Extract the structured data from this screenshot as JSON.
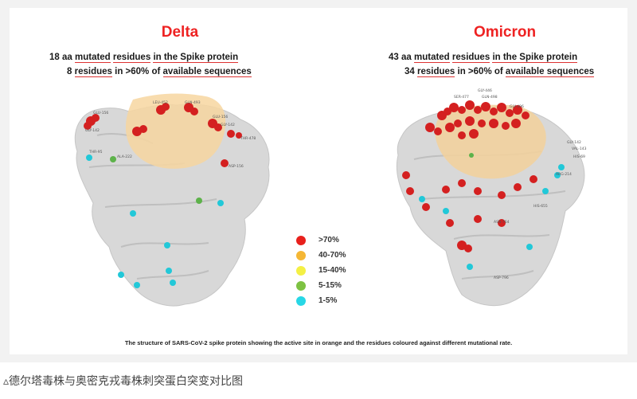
{
  "panels": {
    "delta": {
      "title": "Delta",
      "line1_count": "18 aa",
      "line1_mid": "mutated",
      "line1_mid2": "residues",
      "line1_rest": "in the Spike protein",
      "line2_count": "8",
      "line2_mid": "residues",
      "line2_rest": "in >60% of",
      "line2_tail": "available sequences"
    },
    "omicron": {
      "title": "Omicron",
      "line1_count": "43 aa",
      "line1_mid": "mutated",
      "line1_mid2": "residues",
      "line1_rest": "in the Spike protein",
      "line2_count": "34",
      "line2_mid": "residues",
      "line2_rest": "in >60% of",
      "line2_tail": "available sequences"
    }
  },
  "legend": [
    {
      "label": ">70%",
      "color": "#e8201c"
    },
    {
      "label": "40-70%",
      "color": "#f5b735"
    },
    {
      "label": "15-40%",
      "color": "#f4f044"
    },
    {
      "label": "5-15%",
      "color": "#7dc242"
    },
    {
      "label": "1-5%",
      "color": "#27d7e6"
    }
  ],
  "colors": {
    "protein": "#d9d9d9",
    "active_site": "#f7d9a8",
    "red": "#d42020",
    "cyan": "#22c8d8",
    "green": "#5db24a"
  },
  "caption": "The structure of SARS-CoV-2 spike protein showing the active site in orange and the residues coloured against different mutational rate.",
  "bottom_caption": "▵德尔塔毒株与奥密克戎毒株刺突蛋白突变对比图"
}
